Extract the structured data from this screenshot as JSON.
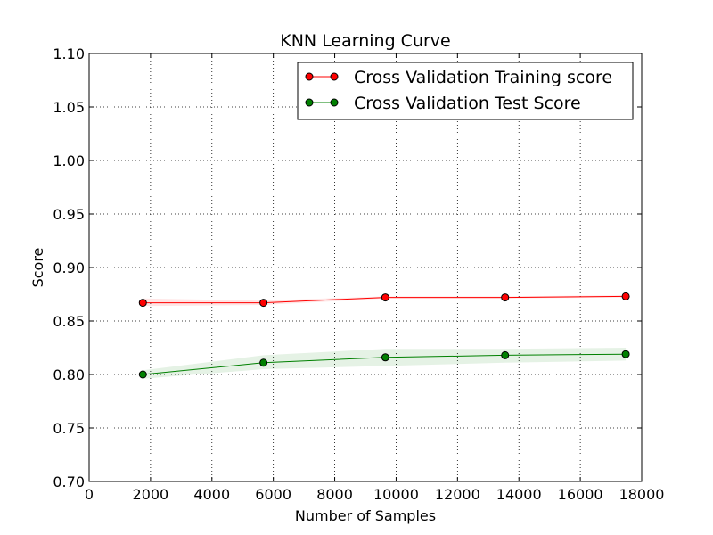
{
  "chart_data": {
    "type": "line",
    "title": "KNN Learning Curve",
    "xlabel": "Number of Samples",
    "ylabel": "Score",
    "xlim": [
      0,
      18000
    ],
    "ylim": [
      0.7,
      1.1
    ],
    "x_ticks": [
      "0",
      "2000",
      "4000",
      "6000",
      "8000",
      "10000",
      "12000",
      "14000",
      "16000",
      "18000"
    ],
    "y_ticks": [
      "0.70",
      "0.75",
      "0.80",
      "0.85",
      "0.90",
      "0.95",
      "1.00",
      "1.05",
      "1.10"
    ],
    "grid": true,
    "legend_position": "top-right",
    "x": [
      1750,
      5680,
      9650,
      13550,
      17480
    ],
    "series": [
      {
        "name": "Cross Validation Training score",
        "color": "#ff0000",
        "values": [
          0.867,
          0.867,
          0.872,
          0.872,
          0.873
        ],
        "band_lower": [
          0.864,
          0.865,
          0.871,
          0.871,
          0.872
        ],
        "band_upper": [
          0.871,
          0.869,
          0.873,
          0.873,
          0.874
        ]
      },
      {
        "name": "Cross Validation Test Score",
        "color": "#008000",
        "values": [
          0.8,
          0.811,
          0.816,
          0.818,
          0.819
        ],
        "band_lower": [
          0.796,
          0.805,
          0.808,
          0.811,
          0.813
        ],
        "band_upper": [
          0.804,
          0.818,
          0.824,
          0.824,
          0.825
        ]
      }
    ]
  }
}
